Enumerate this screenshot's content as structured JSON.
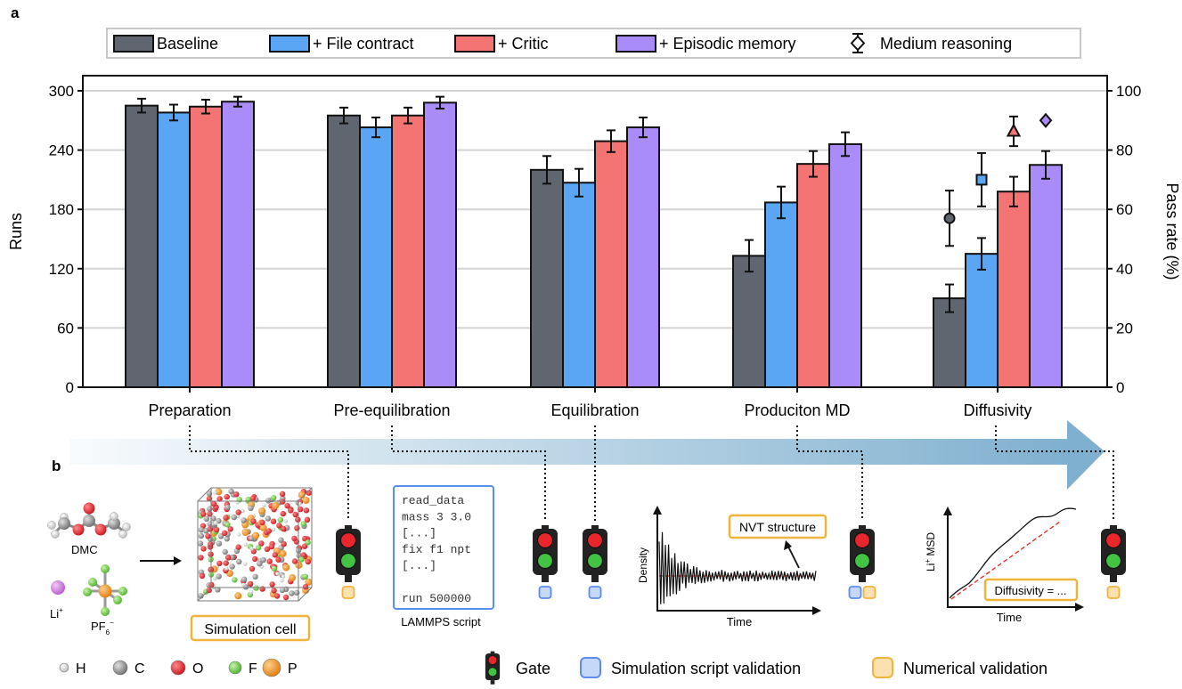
{
  "panel_labels": {
    "a": "a",
    "b": "b"
  },
  "colors": {
    "baseline": "#5f6670",
    "file_contract": "#5aa6f5",
    "critic": "#f47373",
    "episodic_memory": "#a98cf7",
    "script_validation": "#5b8def",
    "numerical_validation": "#f0b43c",
    "arrow": "#7fb0cf",
    "traffic_red": "#e8262b",
    "traffic_green": "#43c343"
  },
  "legend": {
    "items": [
      {
        "label": "Baseline",
        "color_key": "baseline"
      },
      {
        "label": "+ File contract",
        "color_key": "file_contract"
      },
      {
        "label": "+ Critic",
        "color_key": "critic"
      },
      {
        "label": "+ Episodic memory",
        "color_key": "episodic_memory"
      }
    ],
    "marker_label": "Medium reasoning"
  },
  "chart_data": {
    "type": "bar",
    "categories": [
      "Preparation",
      "Pre-equilibration",
      "Equilibration",
      "Produciton MD",
      "Diffusivity"
    ],
    "ylabel": "Runs",
    "ylabel_right": "Pass rate (%)",
    "ylim": [
      0,
      300
    ],
    "ylim_right": [
      0,
      100
    ],
    "yticks": [
      0,
      60,
      120,
      180,
      240,
      300
    ],
    "yticks_right": [
      0,
      20,
      40,
      60,
      80,
      100
    ],
    "grid": true,
    "series": [
      {
        "name": "Baseline",
        "values": [
          285,
          275,
          220,
          133,
          90
        ],
        "errors": [
          7,
          8,
          14,
          16,
          14
        ]
      },
      {
        "name": "+ File contract",
        "values": [
          278,
          263,
          207,
          187,
          135
        ],
        "errors": [
          8,
          10,
          14,
          16,
          16
        ]
      },
      {
        "name": "+ Critic",
        "values": [
          284,
          275,
          249,
          226,
          198
        ],
        "errors": [
          7,
          8,
          11,
          13,
          15
        ]
      },
      {
        "name": "+ Episodic memory",
        "values": [
          289,
          288,
          263,
          246,
          225
        ],
        "errors": [
          5,
          6,
          10,
          12,
          14
        ]
      }
    ],
    "medium_reasoning": {
      "name": "Medium reasoning",
      "category": "Diffusivity",
      "points": [
        {
          "series": "Baseline",
          "value": 171,
          "error": 28,
          "marker": "circle"
        },
        {
          "series": "+ File contract",
          "value": 210,
          "error": 27,
          "marker": "square"
        },
        {
          "series": "+ Critic",
          "value": 259,
          "error": 15,
          "marker": "triangle"
        },
        {
          "series": "+ Episodic memory",
          "value": 270,
          "error": 0,
          "marker": "diamond"
        }
      ]
    }
  },
  "workflow": {
    "molecules": {
      "dmc": "DMC",
      "li": "Li",
      "li_sup": "+",
      "pf6": "PF",
      "pf6_sub": "6",
      "pf6_sup": "−"
    },
    "simulation_cell": "Simulation cell",
    "script": {
      "lines": [
        "read_data",
        "mass 3 3.0",
        "[...]",
        "fix f1 npt",
        "[...]",
        "",
        "run 500000"
      ],
      "caption": "LAMMPS script"
    },
    "density_plot": {
      "ylabel": "Density",
      "xlabel": "Time",
      "annotation": "NVT structure"
    },
    "msd_plot": {
      "ylabel_prefix": "Li",
      "ylabel_sup": "+",
      "ylabel_suffix": " MSD",
      "xlabel": "Time",
      "annotation": "Diffusivity = ..."
    }
  },
  "atoms_legend": [
    {
      "label": "H",
      "color": "#ffffff"
    },
    {
      "label": "C",
      "color": "#8c8c8c"
    },
    {
      "label": "O",
      "color": "#e3262a"
    },
    {
      "label": "F",
      "color": "#7fd45a"
    },
    {
      "label": "P",
      "color": "#f08a1c"
    }
  ],
  "bottom_legend": {
    "gate": "Gate",
    "script_validation": "Simulation script validation",
    "numerical_validation": "Numerical validation"
  }
}
